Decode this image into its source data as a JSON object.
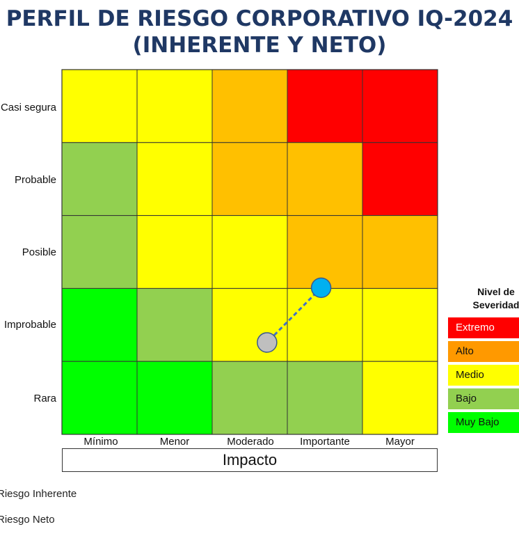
{
  "title": {
    "line1": "PERFIL DE RIESGO CORPORATIVO IQ-2024",
    "line2": "(INHERENTE Y NETO)",
    "color": "#1f3864"
  },
  "colors": {
    "Extremo": "#ff0000",
    "Alto": "#ffc000",
    "Medio": "#ffff00",
    "Bajo": "#92d050",
    "Muy Bajo": "#00ff00",
    "inherent_marker": "#00b0f0",
    "net_marker": "#bfbfbf",
    "connector": "#4472c4"
  },
  "chart_data": {
    "type": "heatmap",
    "title": "PERFIL DE RIESGO CORPORATIVO IQ-2024 (INHERENTE Y NETO)",
    "xlabel": "Impacto",
    "x_categories": [
      "Mínimo",
      "Menor",
      "Moderado",
      "Importante",
      "Mayor"
    ],
    "y_categories": [
      "Casi segura",
      "Probable",
      "Posible",
      "Improbable",
      "Rara"
    ],
    "matrix": [
      [
        "Medio",
        "Medio",
        "Alto",
        "Extremo",
        "Extremo"
      ],
      [
        "Bajo",
        "Medio",
        "Alto",
        "Alto",
        "Extremo"
      ],
      [
        "Bajo",
        "Medio",
        "Medio",
        "Alto",
        "Alto"
      ],
      [
        "Muy Bajo",
        "Bajo",
        "Medio",
        "Medio",
        "Medio"
      ],
      [
        "Muy Bajo",
        "Muy Bajo",
        "Bajo",
        "Bajo",
        "Medio"
      ]
    ],
    "points": [
      {
        "name": "Riesgo Inherente",
        "x": 3.45,
        "y": 2.01,
        "color": "#00b0f0"
      },
      {
        "name": "Riesgo Neto",
        "x": 2.73,
        "y": 1.26,
        "color": "#bfbfbf"
      }
    ],
    "legend": {
      "title_line1": "Nivel de",
      "title_line2": "Severidad",
      "items": [
        {
          "label": "Extremo",
          "color": "#ff0000"
        },
        {
          "label": "Alto",
          "color": "#ff9900"
        },
        {
          "label": "Medio",
          "color": "#ffff00"
        },
        {
          "label": "Bajo",
          "color": "#92d050"
        },
        {
          "label": "Muy Bajo",
          "color": "#00ff00"
        }
      ]
    }
  },
  "footer": {
    "item1": "Riesgo Inherente",
    "item2": "Riesgo Neto"
  }
}
